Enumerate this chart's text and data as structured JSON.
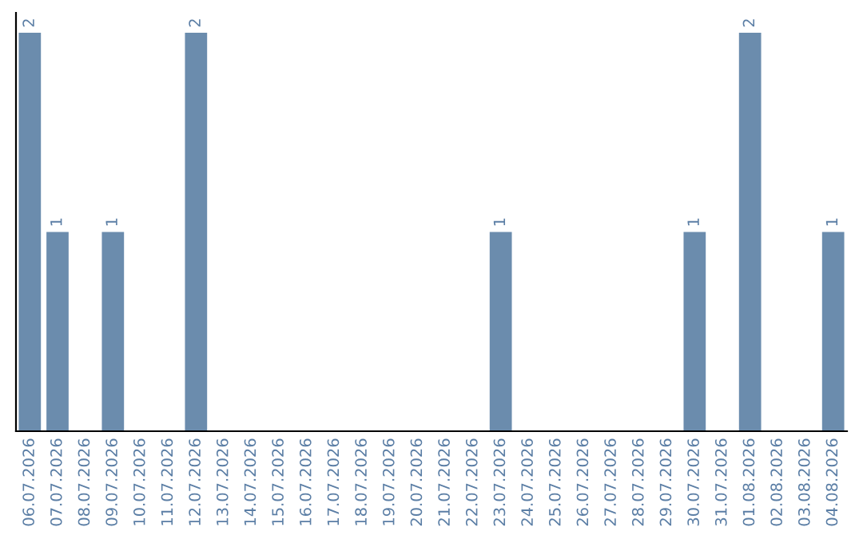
{
  "chart_data": {
    "type": "bar",
    "categories": [
      "06.07.2026",
      "07.07.2026",
      "08.07.2026",
      "09.07.2026",
      "10.07.2026",
      "11.07.2026",
      "12.07.2026",
      "13.07.2026",
      "14.07.2026",
      "15.07.2026",
      "16.07.2026",
      "17.07.2026",
      "18.07.2026",
      "19.07.2026",
      "20.07.2026",
      "21.07.2026",
      "22.07.2026",
      "23.07.2026",
      "24.07.2026",
      "25.07.2026",
      "26.07.2026",
      "27.07.2026",
      "28.07.2026",
      "29.07.2026",
      "30.07.2026",
      "31.07.2026",
      "01.08.2026",
      "02.08.2026",
      "03.08.2026",
      "04.08.2026"
    ],
    "values": [
      2,
      1,
      0,
      1,
      0,
      0,
      2,
      0,
      0,
      0,
      0,
      0,
      0,
      0,
      0,
      0,
      0,
      1,
      0,
      0,
      0,
      0,
      0,
      0,
      1,
      0,
      2,
      0,
      0,
      1
    ],
    "color": "#6b8cad",
    "value_labels": [
      "2",
      "1",
      null,
      "1",
      null,
      null,
      "2",
      null,
      null,
      null,
      null,
      null,
      null,
      null,
      null,
      null,
      null,
      "1",
      null,
      null,
      null,
      null,
      null,
      null,
      "1",
      null,
      "2",
      null,
      null,
      "1"
    ],
    "tick_labels": "x",
    "grid": false,
    "legend": false
  }
}
